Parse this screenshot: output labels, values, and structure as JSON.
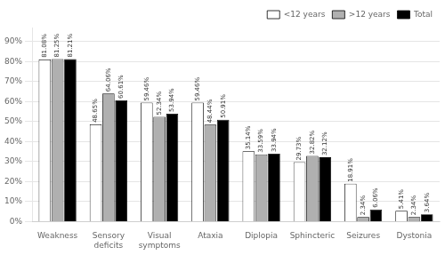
{
  "chart_data": {
    "type": "bar",
    "categories": [
      "Weakness",
      "Sensory\ndeficits",
      "Visual\nsymptoms",
      "Ataxia",
      "Diplopia",
      "Sphincteric",
      "Seizures",
      "Dystonia"
    ],
    "series": [
      {
        "name": "<12 years",
        "color": "#ffffff",
        "values": [
          81.08,
          48.65,
          59.46,
          59.46,
          35.14,
          29.73,
          18.91,
          5.41
        ],
        "value_labels": [
          "81.08%",
          "48.65%",
          "59.46%",
          "59.46%",
          "35.14%",
          "29.73%",
          "18.91%",
          "5.41%"
        ]
      },
      {
        "name": ">12 years",
        "color": "#b0b0b0",
        "values": [
          81.25,
          64.06,
          52.34,
          48.44,
          33.59,
          32.82,
          2.34,
          2.34
        ],
        "value_labels": [
          "81.25%",
          "64.06%",
          "52.34%",
          "48.44%",
          "33.59%",
          "32.82%",
          "2.34%",
          "2.34%"
        ]
      },
      {
        "name": "Total",
        "color": "#000000",
        "values": [
          81.21,
          60.61,
          53.94,
          50.91,
          33.94,
          32.12,
          6.06,
          3.64
        ],
        "value_labels": [
          "81.21%",
          "60.61%",
          "53.94%",
          "50.91%",
          "33.94%",
          "32.12%",
          "6.06%",
          "3.64%"
        ]
      }
    ],
    "ylim": [
      0,
      97
    ],
    "yticks": [
      {
        "value": 0,
        "label": "0%"
      },
      {
        "value": 10,
        "label": "10%"
      },
      {
        "value": 20,
        "label": "20%"
      },
      {
        "value": 30,
        "label": "30%"
      },
      {
        "value": 40,
        "label": "40%"
      },
      {
        "value": 50,
        "label": "50%"
      },
      {
        "value": 60,
        "label": "60%"
      },
      {
        "value": 70,
        "label": "70%"
      },
      {
        "value": 80,
        "label": "80%"
      },
      {
        "value": 90,
        "label": "90%"
      }
    ],
    "grid": true,
    "legend": "upper right",
    "data_labels": true
  }
}
